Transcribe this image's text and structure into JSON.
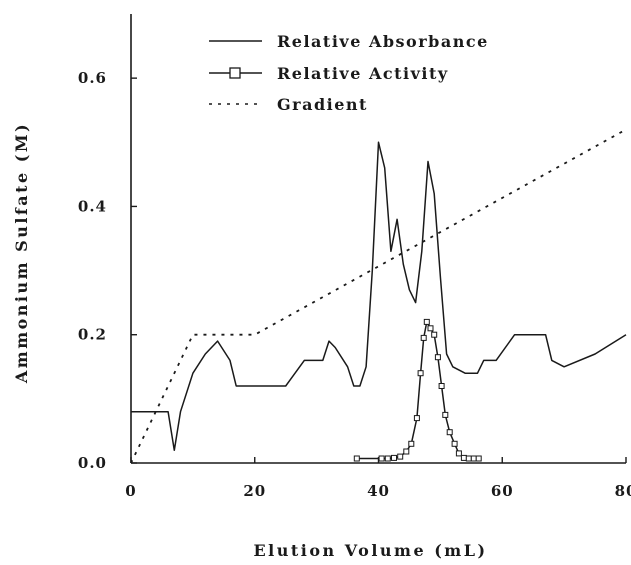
{
  "chart_data": {
    "type": "line",
    "xlabel": "Elution Volume (mL)",
    "ylabel": "Ammonium Sulfate (M)",
    "xlim": [
      0,
      80
    ],
    "ylim": [
      0,
      0.7
    ],
    "x_ticks": [
      0,
      20,
      40,
      60,
      80
    ],
    "x_tick_labels": [
      "0",
      "20",
      "40",
      "60",
      "80"
    ],
    "y_ticks": [
      0.0,
      0.2,
      0.4,
      0.6
    ],
    "y_tick_labels": [
      "0.0",
      "0.2",
      "0.4",
      "0.6"
    ],
    "grid": false,
    "legend_position": "top",
    "series": [
      {
        "name": "Relative Absorbance",
        "style": "solid",
        "marker": "none",
        "color": "#1a1a1a",
        "x": [
          0,
          6,
          7,
          8,
          10,
          12,
          14,
          16,
          17,
          19,
          21,
          23,
          25,
          28,
          31,
          32,
          33,
          35,
          36,
          37,
          38,
          39,
          40,
          41,
          42,
          43,
          44,
          45,
          46,
          47,
          48,
          49,
          50,
          51,
          52,
          54,
          56,
          57,
          59,
          62,
          67,
          68,
          70,
          75,
          80
        ],
        "y": [
          0.08,
          0.08,
          0.02,
          0.08,
          0.14,
          0.17,
          0.19,
          0.16,
          0.12,
          0.12,
          0.12,
          0.12,
          0.12,
          0.16,
          0.16,
          0.19,
          0.18,
          0.15,
          0.12,
          0.12,
          0.15,
          0.3,
          0.5,
          0.46,
          0.33,
          0.38,
          0.31,
          0.27,
          0.25,
          0.33,
          0.47,
          0.42,
          0.29,
          0.17,
          0.15,
          0.14,
          0.14,
          0.16,
          0.16,
          0.2,
          0.2,
          0.16,
          0.15,
          0.17,
          0.2
        ]
      },
      {
        "name": "Relative Activity",
        "style": "solid",
        "marker": "square",
        "color": "#1a1a1a",
        "x": [
          36.5,
          40.5,
          41.5,
          42.5,
          43.5,
          44.5,
          45.3,
          46.2,
          46.8,
          47.3,
          47.8,
          48.4,
          49.0,
          49.6,
          50.2,
          50.8,
          51.5,
          52.3,
          53.0,
          53.8,
          54.6,
          55.4,
          56.2
        ],
        "y": [
          0.007,
          0.007,
          0.007,
          0.008,
          0.01,
          0.018,
          0.03,
          0.07,
          0.14,
          0.195,
          0.22,
          0.21,
          0.2,
          0.165,
          0.12,
          0.075,
          0.048,
          0.03,
          0.015,
          0.008,
          0.007,
          0.007,
          0.007
        ]
      },
      {
        "name": "Gradient",
        "style": "dotted",
        "marker": "none",
        "color": "#1a1a1a",
        "x": [
          0,
          10,
          20,
          80
        ],
        "y": [
          0,
          0.2,
          0.2,
          0.52
        ]
      }
    ]
  }
}
